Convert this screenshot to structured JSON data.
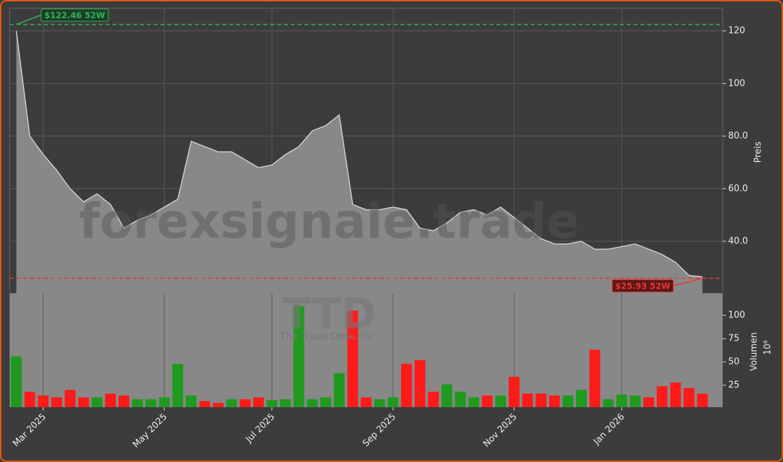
{
  "chart_data": [
    {
      "type": "area",
      "title_watermark": "forexsignale.trade",
      "ylabel": "Preis",
      "categories": [
        null,
        null,
        "Mar 2025",
        null,
        null,
        null,
        null,
        null,
        null,
        null,
        null,
        "May 2025",
        null,
        null,
        null,
        null,
        null,
        null,
        null,
        "Jul 2025",
        null,
        null,
        null,
        null,
        null,
        null,
        null,
        null,
        "Sep 2025",
        null,
        null,
        null,
        null,
        null,
        null,
        null,
        null,
        "Nov 2025",
        null,
        null,
        null,
        null,
        null,
        null,
        null,
        "Jan 2026",
        null,
        null,
        null,
        null,
        null,
        null
      ],
      "values": [
        120,
        80,
        73,
        67,
        60,
        55,
        58,
        54,
        45,
        48,
        50,
        53,
        56,
        78,
        76,
        74,
        74,
        71,
        68,
        69,
        73,
        76,
        82,
        84,
        88,
        54,
        52,
        52,
        53,
        52,
        45,
        44,
        47,
        51,
        52,
        50,
        53,
        49,
        45,
        41,
        39,
        39,
        40,
        37,
        37,
        38,
        39,
        37,
        35,
        32,
        27,
        26.5
      ],
      "color": "#cfcfcf",
      "fill": "#888888",
      "ylim": [
        20.2,
        128.6
      ],
      "yticks": [
        {
          "value": 40,
          "label": "40.0"
        },
        {
          "value": 60,
          "label": "60.0"
        },
        {
          "value": 80,
          "label": "80.0"
        },
        100,
        120
      ],
      "grid": true,
      "annotations": [
        {
          "label": "$122.46 52W",
          "value": 122.46,
          "color": "#2fb457"
        },
        {
          "label": "$25.93 52W",
          "value": 25.93,
          "color": "#e53935"
        }
      ]
    },
    {
      "type": "bar",
      "ylabel": "Volumen",
      "scale_label": "10⁶",
      "watermark": "TTD",
      "watermark_subtitle": "The Trade Desk, Inc.",
      "values": [
        56,
        18,
        14,
        12,
        20,
        12,
        12,
        16,
        14,
        10,
        10,
        12,
        48,
        14,
        8,
        6,
        10,
        10,
        12,
        9,
        10,
        110,
        10,
        12,
        38,
        105,
        12,
        10,
        12,
        48,
        52,
        18,
        26,
        18,
        12,
        14,
        14,
        34,
        16,
        16,
        14,
        14,
        20,
        63,
        10,
        15,
        14,
        12,
        24,
        28,
        22,
        16
      ],
      "up_color": "#1f9a1f",
      "down_color": "#ff1a1a",
      "ylim": [
        1.5,
        123.5
      ],
      "yticks": [
        25,
        50,
        75,
        100
      ]
    }
  ]
}
